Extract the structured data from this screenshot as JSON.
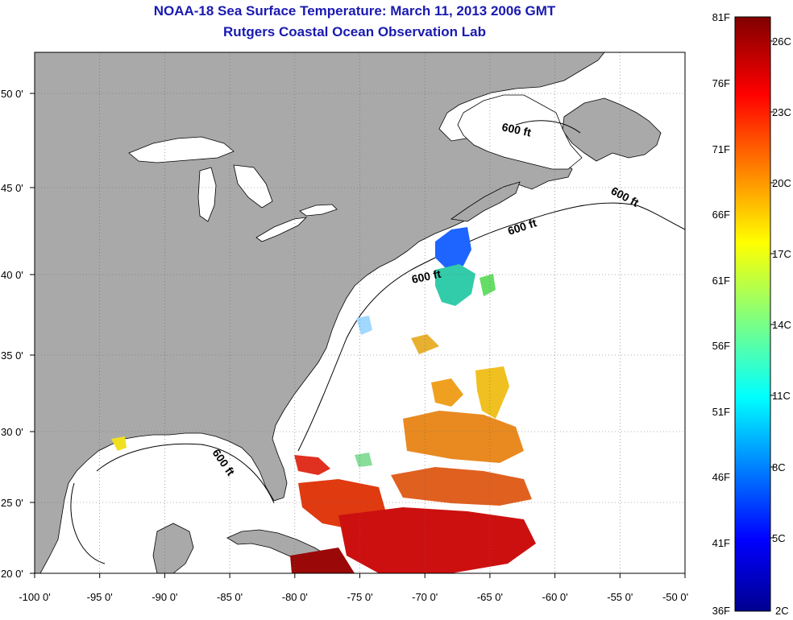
{
  "header": {
    "title": "NOAA-18 Sea Surface Temperature:  March 11, 2013 2006 GMT",
    "subtitle": "Rutgers Coastal Ocean Observation Lab"
  },
  "map": {
    "lon_ticks": [
      "-100 0'",
      "-95 0'",
      "-90 0'",
      "-85 0'",
      "-80 0'",
      "-75 0'",
      "-70 0'",
      "-65 0'",
      "-60 0'",
      "-55 0'",
      "-50 0'"
    ],
    "lat_ticks": [
      "20 0'",
      "25 0'",
      "30 0'",
      "35 0'",
      "40 0'",
      "45 0'",
      "50 0'"
    ],
    "contour_labels": [
      "600 ft",
      "600 ft",
      "600 ft",
      "600 ft",
      "600 ft"
    ],
    "land_color": "#a9a9a9",
    "grid": "dotted"
  },
  "colorbar": {
    "fahrenheit_labels": [
      "81F",
      "76F",
      "71F",
      "66F",
      "61F",
      "56F",
      "51F",
      "46F",
      "41F",
      "36F"
    ],
    "celsius_labels": [
      "26C",
      "23C",
      "20C",
      "17C",
      "14C",
      "11C",
      "8C",
      "5C",
      "2C"
    ],
    "colormap": "jet"
  }
}
